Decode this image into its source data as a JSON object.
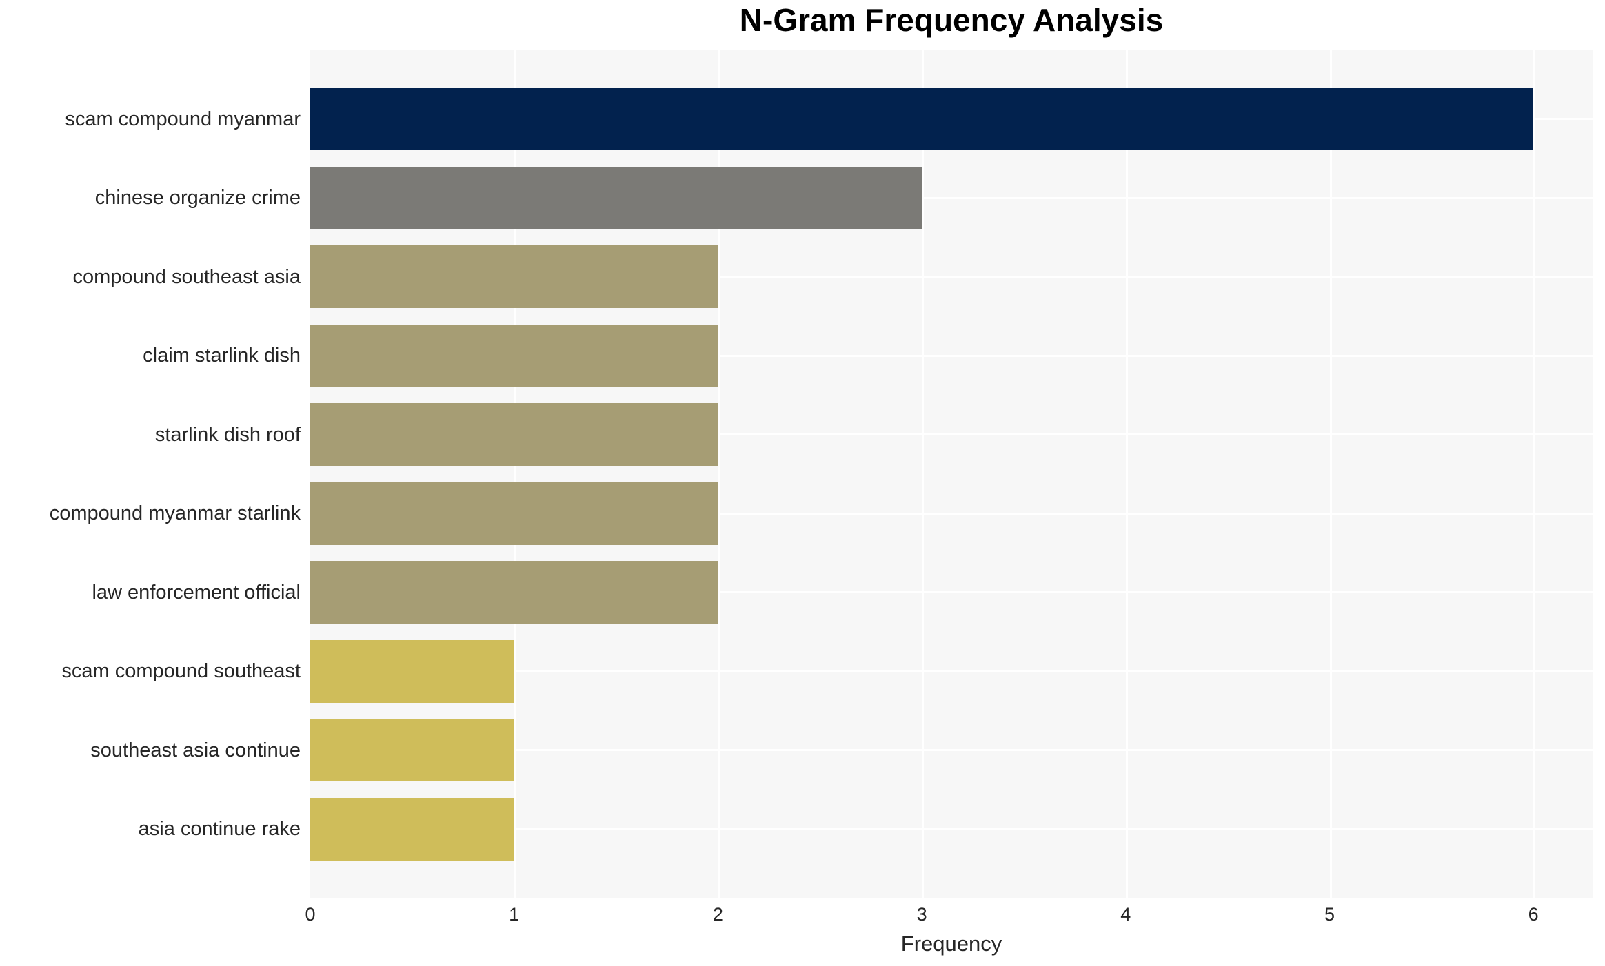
{
  "chart_data": {
    "type": "bar",
    "orientation": "horizontal",
    "title": "N-Gram Frequency Analysis",
    "xlabel": "Frequency",
    "ylabel": "",
    "categories": [
      "scam compound myanmar",
      "chinese organize crime",
      "compound southeast asia",
      "claim starlink dish",
      "starlink dish roof",
      "compound myanmar starlink",
      "law enforcement official",
      "scam compound southeast",
      "southeast asia continue",
      "asia continue rake"
    ],
    "values": [
      6,
      3,
      2,
      2,
      2,
      2,
      2,
      1,
      1,
      1
    ],
    "bar_colors": [
      "#02224e",
      "#7b7a76",
      "#a69d74",
      "#a69d74",
      "#a69d74",
      "#a69d74",
      "#a69d74",
      "#cfbd5a",
      "#cfbd5a",
      "#cfbd5a"
    ],
    "x_ticks": [
      0,
      1,
      2,
      3,
      4,
      5,
      6
    ],
    "xlim": [
      0,
      6.29
    ],
    "grid": true,
    "legend": false,
    "plot_bg_color": "#f7f7f7",
    "grid_color": "#ffffff",
    "text_color": "#262626"
  }
}
